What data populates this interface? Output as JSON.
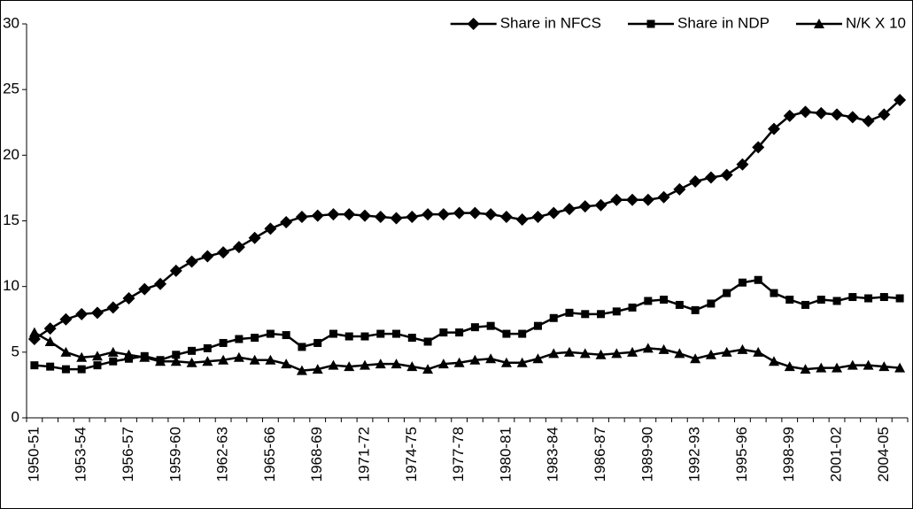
{
  "chart_data": {
    "type": "line",
    "categories": [
      "1950-51",
      null,
      null,
      "1953-54",
      null,
      null,
      "1956-57",
      null,
      null,
      "1959-60",
      null,
      null,
      "1962-63",
      null,
      null,
      "1965-66",
      null,
      null,
      "1968-69",
      null,
      null,
      "1971-72",
      null,
      null,
      "1974-75",
      null,
      null,
      "1977-78",
      null,
      null,
      "1980-81",
      null,
      null,
      "1983-84",
      null,
      null,
      "1986-87",
      null,
      null,
      "1989-90",
      null,
      null,
      "1992-93",
      null,
      null,
      "1995-96",
      null,
      null,
      "1998-99",
      null,
      null,
      "2001-02",
      null,
      null,
      "2004-05",
      null
    ],
    "series": [
      {
        "name": "Share in NFCS",
        "color": "#000000",
        "marker": "diamond",
        "values": [
          6,
          6.8,
          7.5,
          7.9,
          8,
          8.4,
          9.1,
          9.8,
          10.2,
          11.2,
          11.9,
          12.3,
          12.6,
          13,
          13.7,
          14.4,
          14.9,
          15.3,
          15.4,
          15.5,
          15.5,
          15.4,
          15.3,
          15.2,
          15.3,
          15.5,
          15.5,
          15.6,
          15.6,
          15.5,
          15.3,
          15.1,
          15.3,
          15.6,
          15.9,
          16.1,
          16.2,
          16.6,
          16.6,
          16.6,
          16.8,
          17.4,
          18,
          18.3,
          18.5,
          19.3,
          20.6,
          22,
          23,
          23.3,
          23.2,
          23.1,
          22.9,
          22.6,
          23.1,
          24.2
        ]
      },
      {
        "name": "Share in NDP",
        "color": "#000000",
        "marker": "square",
        "values": [
          4,
          3.9,
          3.7,
          3.7,
          4,
          4.3,
          4.5,
          4.7,
          4.4,
          4.8,
          5.1,
          5.3,
          5.7,
          6,
          6.1,
          6.4,
          6.3,
          5.4,
          5.7,
          6.4,
          6.2,
          6.2,
          6.4,
          6.4,
          6.1,
          5.8,
          6.5,
          6.5,
          6.9,
          7,
          6.4,
          6.4,
          7,
          7.6,
          8,
          7.9,
          7.9,
          8.1,
          8.4,
          8.9,
          9,
          8.6,
          8.2,
          8.7,
          9.5,
          10.3,
          10.5,
          9.5,
          9,
          8.6,
          9,
          8.9,
          9.2,
          9.1,
          9.2,
          9.1
        ]
      },
      {
        "name": "N/K X 10",
        "color": "#000000",
        "marker": "triangle",
        "values": [
          6.5,
          5.8,
          5,
          4.6,
          4.7,
          5,
          4.8,
          4.6,
          4.3,
          4.3,
          4.2,
          4.3,
          4.4,
          4.6,
          4.4,
          4.4,
          4.1,
          3.6,
          3.7,
          4,
          3.9,
          4,
          4.1,
          4.1,
          3.9,
          3.7,
          4.1,
          4.2,
          4.4,
          4.5,
          4.2,
          4.2,
          4.5,
          4.9,
          5,
          4.9,
          4.8,
          4.9,
          5,
          5.3,
          5.2,
          4.9,
          4.5,
          4.8,
          5,
          5.2,
          5,
          4.3,
          3.9,
          3.7,
          3.8,
          3.8,
          4,
          4,
          3.9,
          3.8
        ]
      }
    ],
    "ylim": [
      0,
      30
    ],
    "yticks": [
      0,
      5,
      10,
      15,
      20,
      25,
      30
    ],
    "grid": false,
    "legend": "top-right"
  }
}
